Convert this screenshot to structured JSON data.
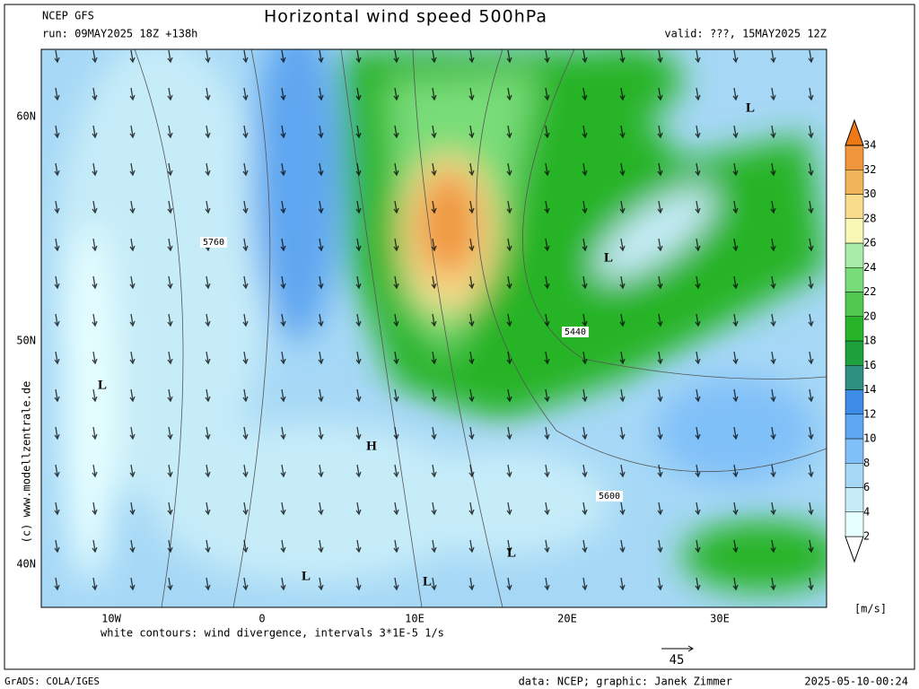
{
  "header": {
    "model": "NCEP GFS",
    "run": "run: 09MAY2025 18Z +138h",
    "title": "Horizontal wind speed 500hPa",
    "valid": "valid: ???, 15MAY2025 12Z"
  },
  "axes": {
    "lat_labels": [
      "60N",
      "50N",
      "40N"
    ],
    "lon_labels": [
      "10W",
      "0",
      "10E",
      "20E",
      "30E"
    ]
  },
  "map_labels": {
    "pressure_centers": [
      "L",
      "L",
      "L",
      "H",
      "L",
      "L",
      "L"
    ],
    "contour_values": [
      "5760",
      "5440",
      "5600"
    ]
  },
  "colorbar": {
    "levels": [
      2,
      4,
      6,
      8,
      10,
      12,
      14,
      16,
      18,
      20,
      22,
      24,
      26,
      28,
      30,
      32,
      34
    ],
    "colors": [
      "#ffffff",
      "#e6ffff",
      "#c6ecf8",
      "#a6d8f6",
      "#80c0f8",
      "#5ea6f0",
      "#3c8ce6",
      "#2d9080",
      "#1ea03c",
      "#28b428",
      "#50c850",
      "#78dc78",
      "#a8ecaa",
      "#f8f8b4",
      "#f8dc8c",
      "#f0b45a",
      "#f0963c",
      "#ee7814"
    ],
    "unit": "[m/s]"
  },
  "footer": {
    "note": "white contours: wind divergence, intervals 3*1E-5 1/s",
    "vector_ref": "45",
    "software": "GrADS: COLA/IGES",
    "credits": "data: NCEP; graphic: Janek Zimmer",
    "timestamp": "2025-05-10-00:24",
    "copyright": "(c) www.modellzentrale.de"
  }
}
